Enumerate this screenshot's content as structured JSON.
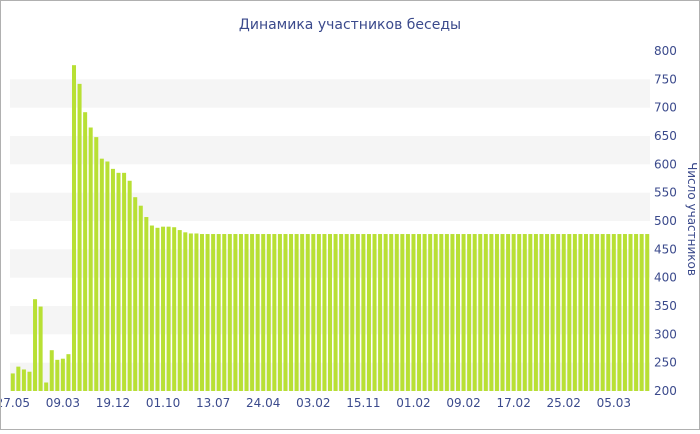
{
  "colors": {
    "bar": "#b8e034",
    "band": "#f5f5f5",
    "text": "#3b4a8c",
    "border": "#b0b0b0"
  },
  "chart_data": {
    "type": "bar",
    "title": "Динамика участников беседы",
    "xlabel": "",
    "ylabel": "Число участников",
    "ylim": [
      200,
      800
    ],
    "yticks": [
      200,
      250,
      300,
      350,
      400,
      450,
      500,
      550,
      600,
      650,
      700,
      750,
      800
    ],
    "y_axis_side": "right",
    "grid": "alternating horizontal bands",
    "x_tick_labels": [
      {
        "index": 0,
        "label": "27.05"
      },
      {
        "index": 9,
        "label": "09.03"
      },
      {
        "index": 18,
        "label": "19.12"
      },
      {
        "index": 27,
        "label": "01.10"
      },
      {
        "index": 36,
        "label": "13.07"
      },
      {
        "index": 45,
        "label": "24.04"
      },
      {
        "index": 54,
        "label": "03.02"
      },
      {
        "index": 63,
        "label": "15.11"
      },
      {
        "index": 72,
        "label": "01.02"
      },
      {
        "index": 81,
        "label": "09.02"
      },
      {
        "index": 90,
        "label": "17.02"
      },
      {
        "index": 99,
        "label": "25.02"
      },
      {
        "index": 108,
        "label": "05.03"
      }
    ],
    "values": [
      231,
      243,
      238,
      234,
      362,
      349,
      215,
      272,
      255,
      257,
      265,
      775,
      742,
      692,
      665,
      648,
      610,
      605,
      592,
      585,
      585,
      571,
      542,
      527,
      507,
      492,
      488,
      490,
      490,
      489,
      484,
      480,
      478,
      478,
      477,
      477,
      477,
      477,
      477,
      477,
      477,
      477,
      477,
      477,
      477,
      477,
      477,
      477,
      477,
      477,
      477,
      477,
      477,
      477,
      477,
      477,
      477,
      477,
      477,
      477,
      477,
      477,
      477,
      477,
      477,
      477,
      477,
      477,
      477,
      477,
      477,
      477,
      477,
      477,
      477,
      477,
      477,
      477,
      477,
      477,
      477,
      477,
      477,
      477,
      477,
      477,
      477,
      477,
      477,
      477,
      477,
      477,
      477,
      477,
      477,
      477,
      477,
      477,
      477,
      477,
      477,
      477,
      477,
      477,
      477,
      477,
      477,
      477,
      477,
      477,
      477,
      477,
      477,
      477,
      477
    ]
  }
}
